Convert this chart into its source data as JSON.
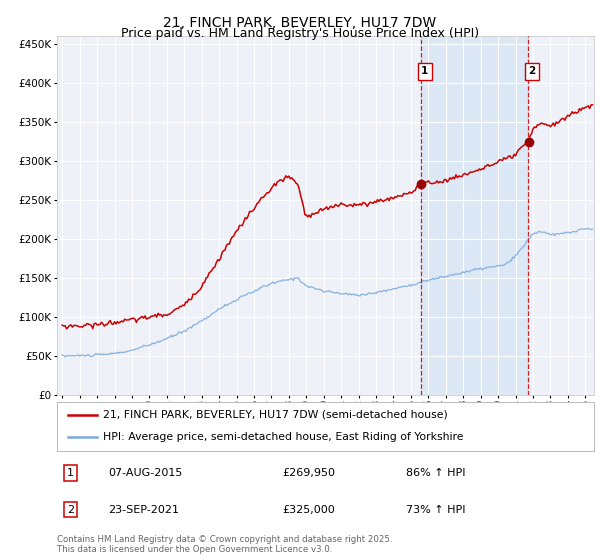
{
  "title": "21, FINCH PARK, BEVERLEY, HU17 7DW",
  "subtitle": "Price paid vs. HM Land Registry's House Price Index (HPI)",
  "legend_line1": "21, FINCH PARK, BEVERLEY, HU17 7DW (semi-detached house)",
  "legend_line2": "HPI: Average price, semi-detached house, East Riding of Yorkshire",
  "annotation1_date": "07-AUG-2015",
  "annotation1_price": "£269,950",
  "annotation1_hpi": "86% ↑ HPI",
  "annotation2_date": "23-SEP-2021",
  "annotation2_price": "£325,000",
  "annotation2_hpi": "73% ↑ HPI",
  "footer": "Contains HM Land Registry data © Crown copyright and database right 2025.\nThis data is licensed under the Open Government Licence v3.0.",
  "vline1_year": 2015.6,
  "vline2_year": 2021.73,
  "point1_value": 269950,
  "point2_value": 325000,
  "background_color": "#ffffff",
  "plot_bg_color": "#eef2f8",
  "shade_color": "#dce8f5",
  "red_line_color": "#cc0000",
  "blue_line_color": "#7aaadd",
  "grid_color": "#ffffff",
  "vline_color": "#cc0000",
  "title_fontsize": 10,
  "subtitle_fontsize": 9,
  "axis_fontsize": 7.5
}
